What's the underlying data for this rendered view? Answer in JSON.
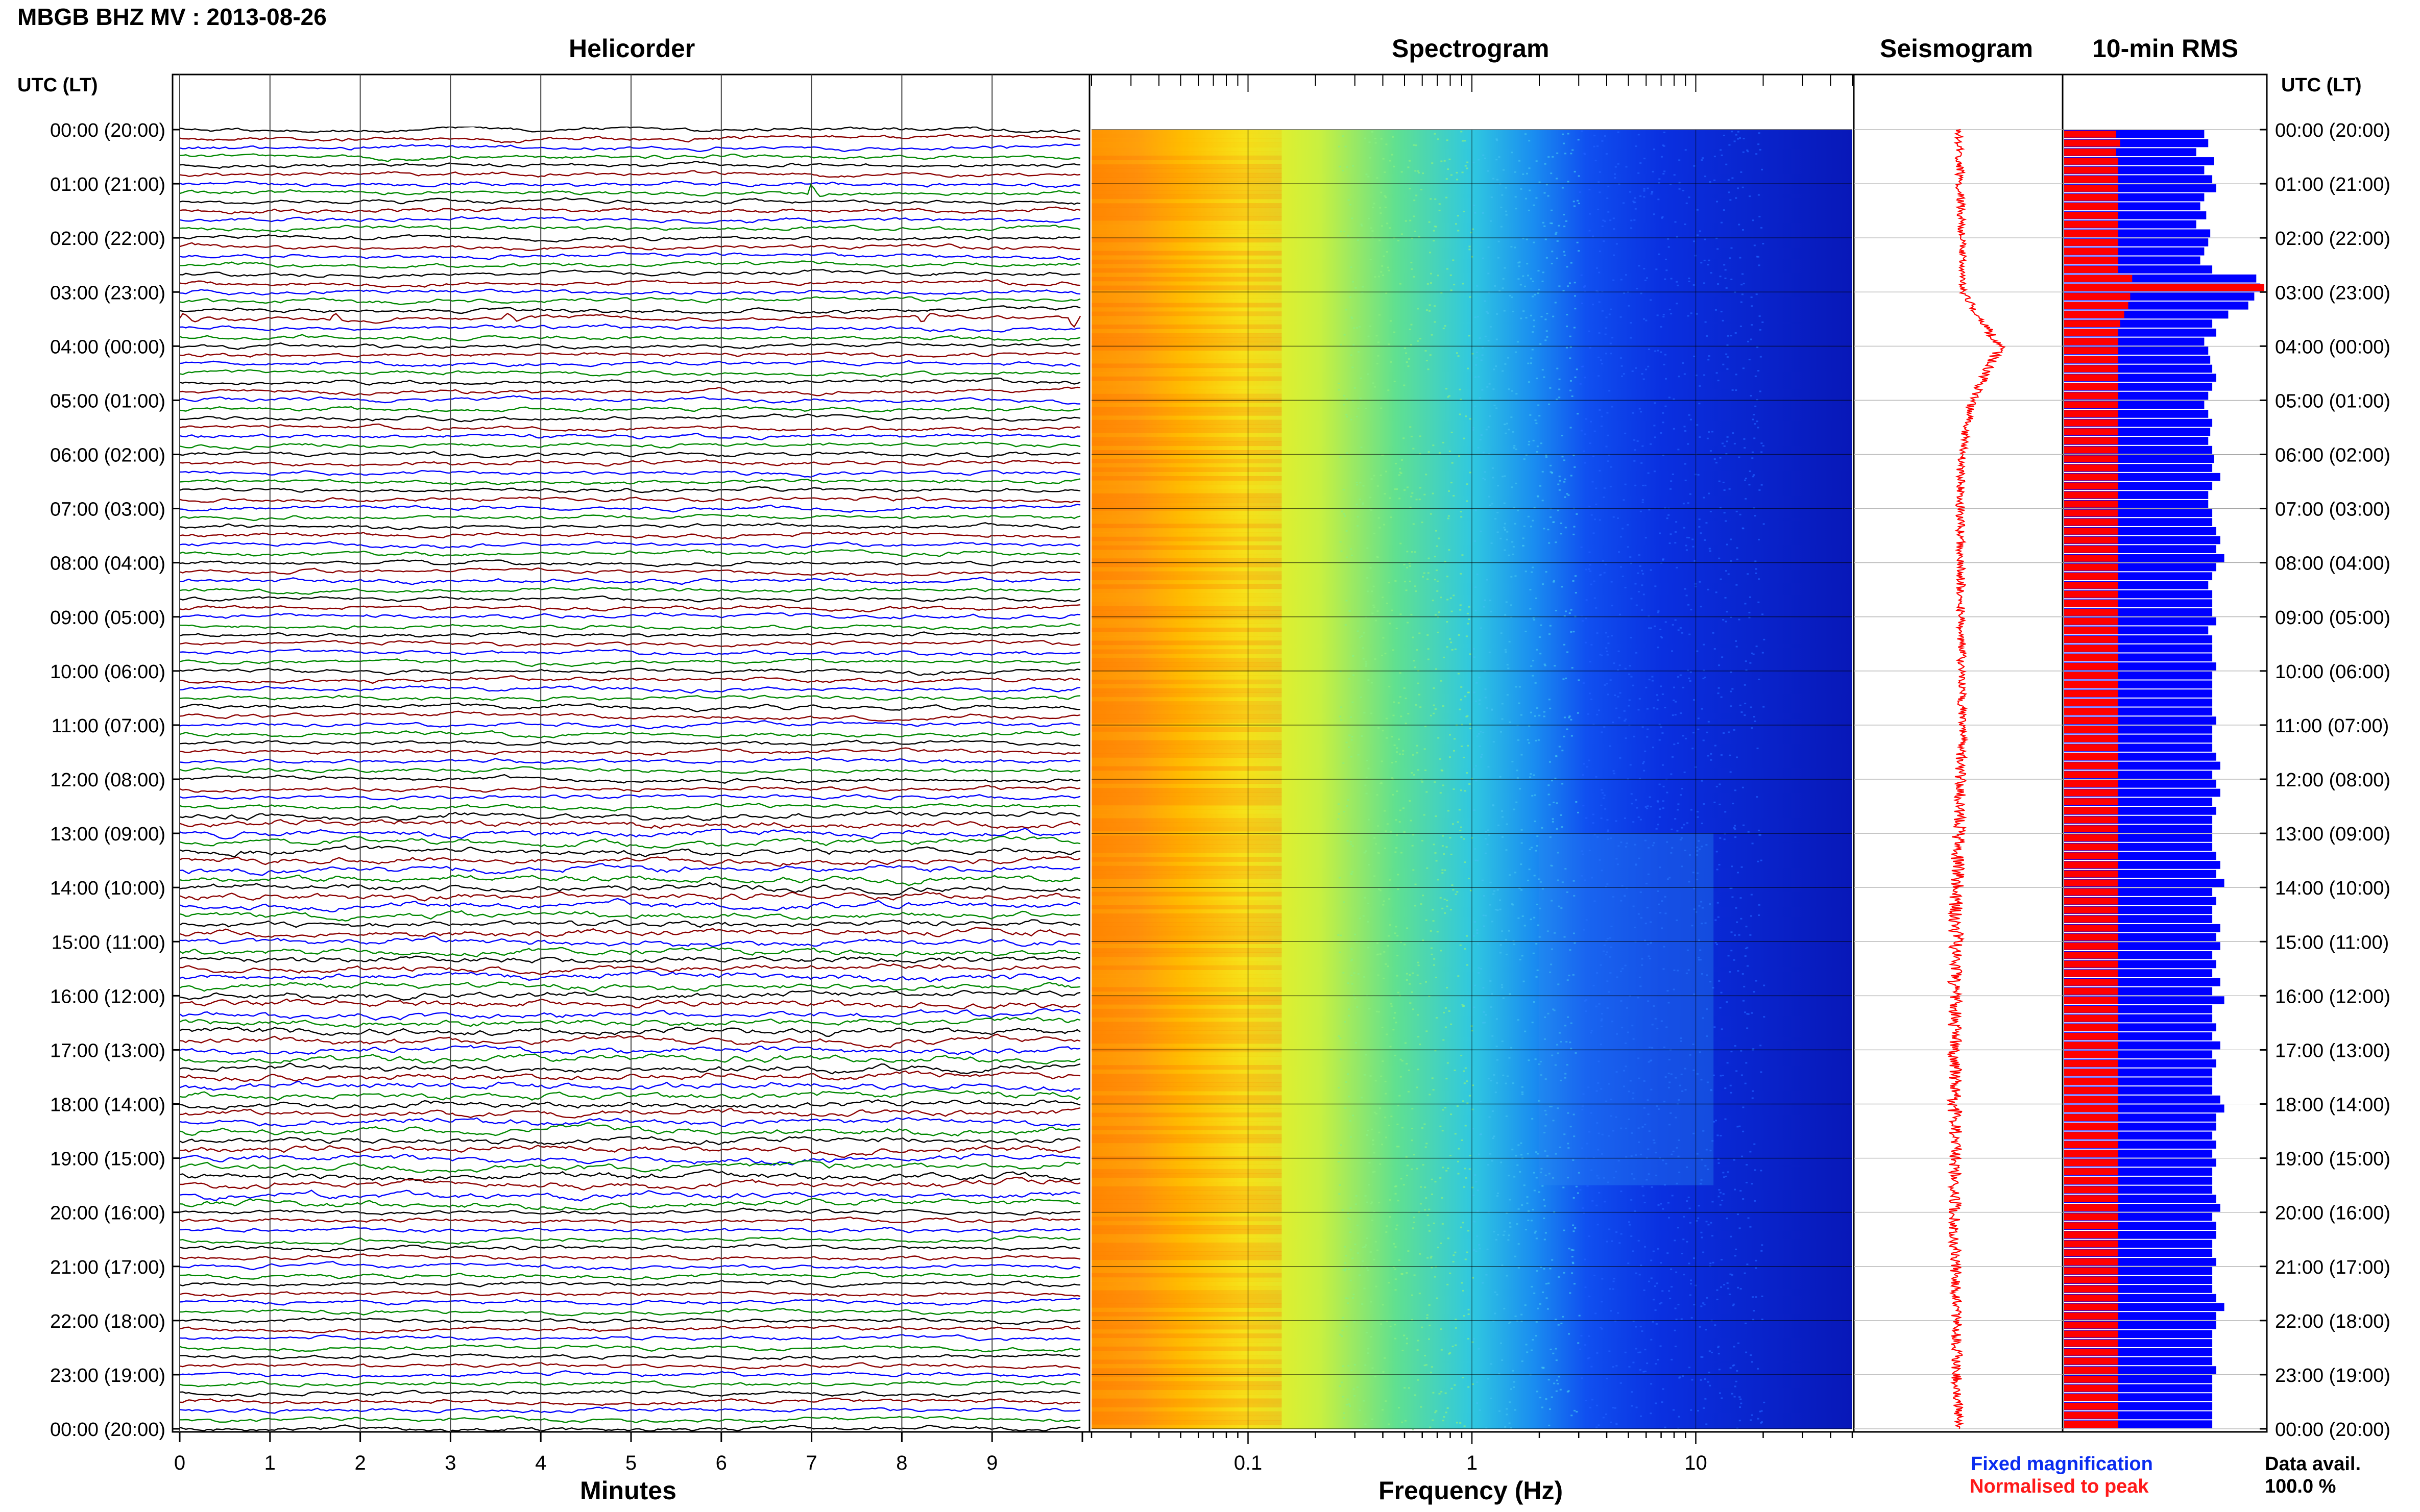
{
  "header": {
    "title": "MBGB BHZ MV : 2013-08-26",
    "utc_lt_left": "UTC (LT)",
    "utc_lt_right": "UTC (LT)"
  },
  "panels": {
    "helicorder": "Helicorder",
    "spectrogram": "Spectrogram",
    "seismogram": "Seismogram",
    "rms": "10-min RMS"
  },
  "axes": {
    "minutes_label": "Minutes",
    "frequency_label": "Frequency (Hz)"
  },
  "legend": {
    "fixed": "Fixed magnification",
    "normalised": "Normalised to peak"
  },
  "data_availability": {
    "label": "Data avail.",
    "value": "100.0 %"
  },
  "colors": {
    "trace_cycle": [
      "#000000",
      "#8b0000",
      "#0000ff",
      "#008800"
    ],
    "rms_fixed": "#0000ff",
    "rms_normalised": "#ff0000",
    "seismogram": "#ff0000"
  },
  "chart_data": [
    {
      "type": "line",
      "name": "helicorder",
      "x_ticks": [
        "0",
        "1",
        "2",
        "3",
        "4",
        "5",
        "6",
        "7",
        "8",
        "9"
      ],
      "xlabel": "Minutes",
      "xlim": [
        0,
        10
      ],
      "rows_per_hour": 6,
      "hours": 24,
      "events": [
        {
          "row_minutes_utc": "01:10",
          "minute": 7.0
        },
        {
          "row_minutes_utc": "03:30",
          "minute": 0.0
        },
        {
          "row_minutes_utc": "03:30",
          "minute": 1.7
        },
        {
          "row_minutes_utc": "03:30",
          "minute": 3.6
        },
        {
          "row_minutes_utc": "03:30",
          "minute": 8.2
        },
        {
          "row_minutes_utc": "03:30",
          "minute": 9.9
        }
      ]
    },
    {
      "type": "heatmap",
      "name": "spectrogram",
      "x_scale": "log",
      "xlim": [
        0.02,
        50
      ],
      "x_ticks": [
        "0.1",
        "1",
        "10"
      ],
      "x_tick_values": [
        0.1,
        1,
        10
      ],
      "xlabel": "Frequency (Hz)",
      "y": "time UTC 00:00-24:00",
      "colormap": "jet"
    },
    {
      "type": "line",
      "name": "seismogram",
      "y_ticks": [
        "00:00",
        "01:00",
        "02:00",
        "03:00",
        "04:00",
        "05:00",
        "06:00",
        "07:00",
        "08:00",
        "09:00",
        "10:00",
        "11:00",
        "12:00",
        "13:00",
        "14:00",
        "15:00",
        "16:00",
        "17:00",
        "18:00",
        "19:00",
        "20:00",
        "21:00",
        "22:00",
        "23:00",
        "00:00"
      ],
      "hourly_offset": [
        0.0,
        0.02,
        0.04,
        0.05,
        0.45,
        0.15,
        0.03,
        0.02,
        0.02,
        0.03,
        0.04,
        0.04,
        0.02,
        0.0,
        -0.02,
        -0.03,
        -0.04,
        -0.05,
        -0.04,
        -0.03,
        -0.04,
        -0.03,
        -0.02,
        -0.02,
        0.0
      ],
      "hourly_halfwidth": [
        0.04,
        0.05,
        0.04,
        0.04,
        0.06,
        0.05,
        0.05,
        0.05,
        0.05,
        0.05,
        0.05,
        0.05,
        0.06,
        0.07,
        0.08,
        0.08,
        0.08,
        0.08,
        0.08,
        0.07,
        0.07,
        0.06,
        0.06,
        0.06,
        0.05
      ]
    },
    {
      "type": "bar",
      "name": "10-min RMS",
      "orientation": "horizontal",
      "bins_per_hour": 6,
      "series": [
        {
          "name": "Fixed magnification",
          "values": [
            0.7,
            0.72,
            0.66,
            0.75,
            0.7,
            0.74,
            0.76,
            0.7,
            0.68,
            0.71,
            0.66,
            0.73,
            0.72,
            0.7,
            0.68,
            0.74,
            0.96,
            0.98,
            0.95,
            0.92,
            0.82,
            0.74,
            0.76,
            0.7,
            0.72,
            0.73,
            0.74,
            0.76,
            0.74,
            0.72,
            0.7,
            0.72,
            0.74,
            0.73,
            0.72,
            0.74,
            0.75,
            0.74,
            0.78,
            0.74,
            0.72,
            0.72,
            0.74,
            0.74,
            0.76,
            0.78,
            0.76,
            0.8,
            0.76,
            0.74,
            0.72,
            0.74,
            0.74,
            0.74,
            0.76,
            0.72,
            0.74,
            0.74,
            0.74,
            0.76,
            0.74,
            0.74,
            0.74,
            0.74,
            0.74,
            0.76,
            0.74,
            0.74,
            0.74,
            0.76,
            0.78,
            0.74,
            0.76,
            0.78,
            0.74,
            0.76,
            0.74,
            0.74,
            0.74,
            0.74,
            0.76,
            0.78,
            0.76,
            0.8,
            0.74,
            0.76,
            0.74,
            0.74,
            0.78,
            0.76,
            0.78,
            0.74,
            0.76,
            0.74,
            0.78,
            0.74,
            0.8,
            0.74,
            0.74,
            0.76,
            0.74,
            0.78,
            0.74,
            0.76,
            0.74,
            0.74,
            0.74,
            0.78,
            0.8,
            0.76,
            0.76,
            0.74,
            0.76,
            0.74,
            0.76,
            0.74,
            0.74,
            0.74,
            0.76,
            0.78,
            0.74,
            0.76,
            0.76,
            0.74,
            0.74,
            0.76,
            0.74,
            0.74,
            0.74,
            0.76,
            0.8,
            0.76,
            0.76,
            0.74,
            0.74,
            0.74,
            0.74,
            0.76,
            0.74,
            0.74,
            0.74,
            0.74,
            0.74,
            0.74
          ]
        },
        {
          "name": "Normalised to peak",
          "values": [
            0.26,
            0.28,
            0.26,
            0.27,
            0.27,
            0.27,
            0.27,
            0.27,
            0.27,
            0.27,
            0.27,
            0.27,
            0.27,
            0.27,
            0.27,
            0.27,
            0.34,
            1.0,
            0.33,
            0.32,
            0.3,
            0.28,
            0.27,
            0.27,
            0.27,
            0.27,
            0.27,
            0.27,
            0.27,
            0.27,
            0.27,
            0.27,
            0.27,
            0.27,
            0.27,
            0.27,
            0.27,
            0.27,
            0.27,
            0.27,
            0.27,
            0.27,
            0.27,
            0.27,
            0.27,
            0.27,
            0.27,
            0.27,
            0.27,
            0.27,
            0.27,
            0.27,
            0.27,
            0.27,
            0.27,
            0.27,
            0.27,
            0.27,
            0.27,
            0.27,
            0.27,
            0.27,
            0.27,
            0.27,
            0.27,
            0.27,
            0.27,
            0.27,
            0.27,
            0.27,
            0.27,
            0.27,
            0.27,
            0.27,
            0.27,
            0.27,
            0.27,
            0.27,
            0.27,
            0.27,
            0.27,
            0.27,
            0.27,
            0.27,
            0.27,
            0.27,
            0.27,
            0.27,
            0.27,
            0.27,
            0.27,
            0.27,
            0.27,
            0.27,
            0.27,
            0.27,
            0.27,
            0.27,
            0.27,
            0.27,
            0.27,
            0.27,
            0.27,
            0.27,
            0.27,
            0.27,
            0.27,
            0.27,
            0.27,
            0.27,
            0.27,
            0.27,
            0.27,
            0.27,
            0.27,
            0.27,
            0.27,
            0.27,
            0.27,
            0.27,
            0.27,
            0.27,
            0.27,
            0.27,
            0.27,
            0.27,
            0.27,
            0.27,
            0.27,
            0.27,
            0.27,
            0.27,
            0.27,
            0.27,
            0.27,
            0.27,
            0.27,
            0.27,
            0.27,
            0.27,
            0.27,
            0.27,
            0.27,
            0.27
          ]
        }
      ]
    }
  ],
  "time_labels": [
    "00:00 (20:00)",
    "01:00 (21:00)",
    "02:00 (22:00)",
    "03:00 (23:00)",
    "04:00 (00:00)",
    "05:00 (01:00)",
    "06:00 (02:00)",
    "07:00 (03:00)",
    "08:00 (04:00)",
    "09:00 (05:00)",
    "10:00 (06:00)",
    "11:00 (07:00)",
    "12:00 (08:00)",
    "13:00 (09:00)",
    "14:00 (10:00)",
    "15:00 (11:00)",
    "16:00 (12:00)",
    "17:00 (13:00)",
    "18:00 (14:00)",
    "19:00 (15:00)",
    "20:00 (16:00)",
    "21:00 (17:00)",
    "22:00 (18:00)",
    "23:00 (19:00)",
    "00:00 (20:00)"
  ]
}
